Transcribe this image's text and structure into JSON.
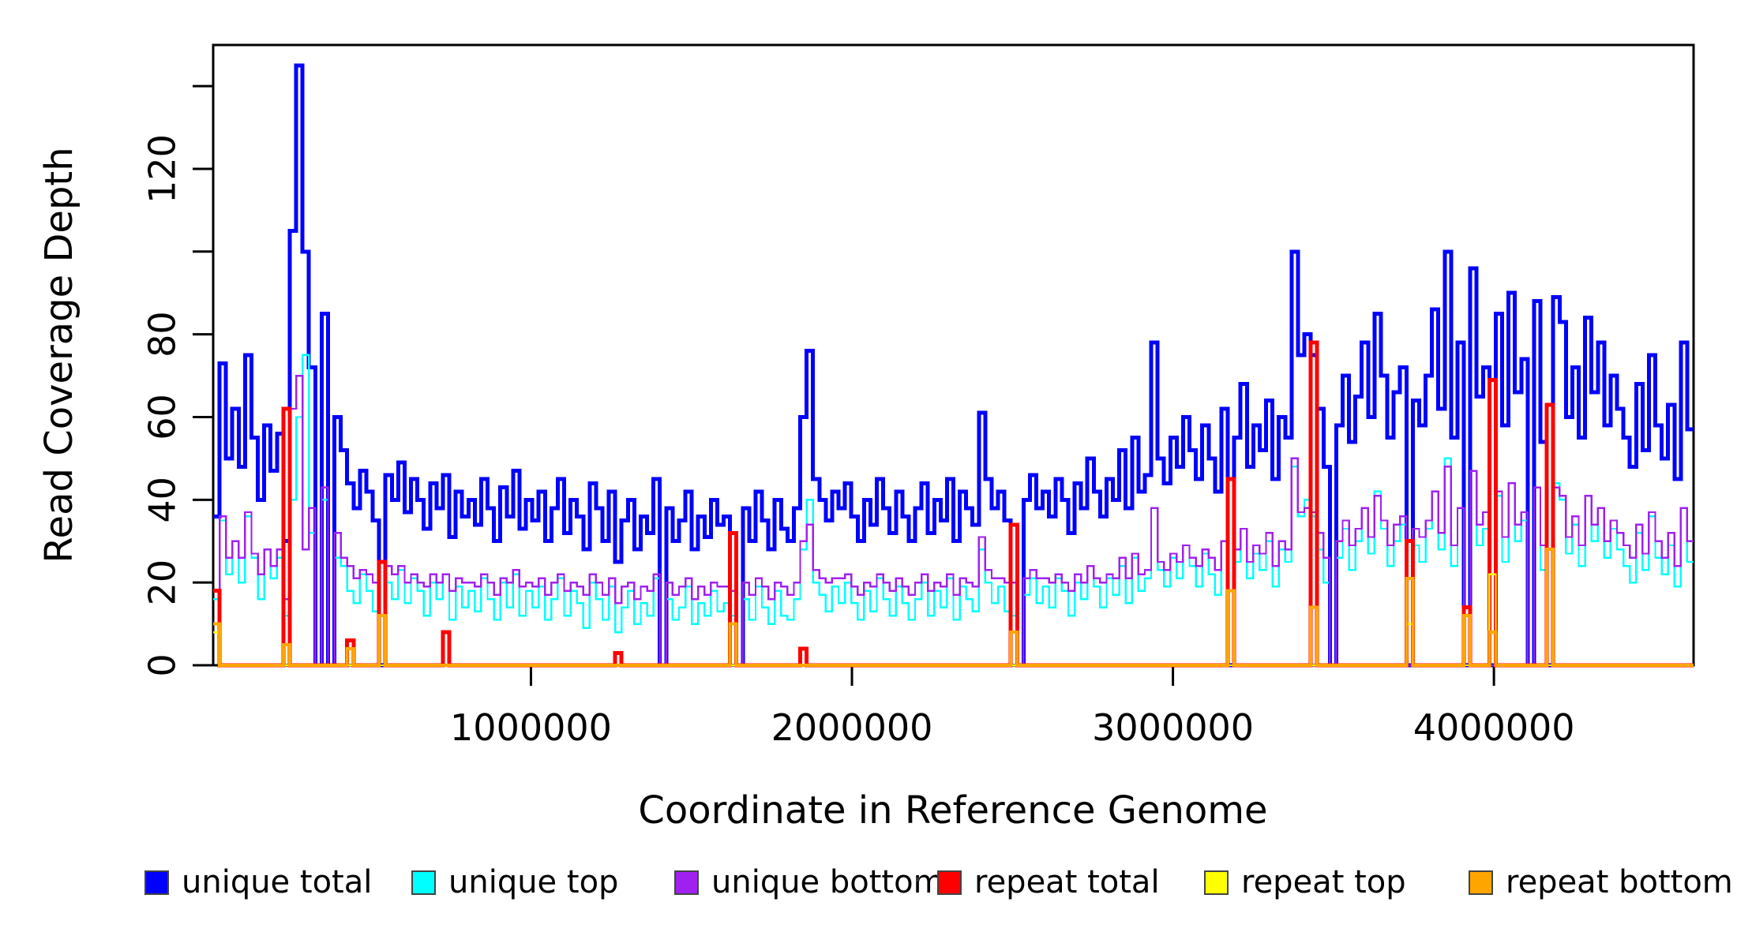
{
  "figure": {
    "background": "#FFFFFF"
  },
  "chart_data": {
    "type": "line",
    "subtype": "step",
    "title": "",
    "xlabel": "Coordinate in Reference Genome",
    "ylabel": "Read Coverage Depth",
    "grid": false,
    "legend_position": "bottom",
    "xlim": [
      10000,
      4622000
    ],
    "ylim": [
      0,
      150
    ],
    "n_windows": 232,
    "window_size_bp": 19879,
    "x_ticks": [
      {
        "value": 1000000,
        "label": "1000000"
      },
      {
        "value": 2000000,
        "label": "2000000"
      },
      {
        "value": 3000000,
        "label": "3000000"
      },
      {
        "value": 4000000,
        "label": "4000000"
      }
    ],
    "y_ticks": [
      {
        "value": 0,
        "label": "0"
      },
      {
        "value": 20,
        "label": "20"
      },
      {
        "value": 40,
        "label": "40"
      },
      {
        "value": 60,
        "label": "60"
      },
      {
        "value": 80,
        "label": "80"
      },
      {
        "value": 100,
        "label": ""
      },
      {
        "value": 120,
        "label": "120"
      },
      {
        "value": 140,
        "label": ""
      }
    ],
    "series": [
      {
        "name": "unique total",
        "color": "#0000FF",
        "width": 5,
        "values": [
          36,
          73,
          50,
          62,
          48,
          75,
          55,
          40,
          58,
          47,
          56,
          30,
          105,
          145,
          100,
          72,
          0,
          85,
          0,
          60,
          52,
          44,
          38,
          47,
          42,
          35,
          0,
          46,
          40,
          49,
          37,
          45,
          40,
          33,
          44,
          38,
          46,
          31,
          42,
          36,
          40,
          34,
          45,
          38,
          30,
          43,
          36,
          47,
          33,
          40,
          35,
          42,
          30,
          38,
          45,
          32,
          40,
          36,
          28,
          44,
          38,
          30,
          42,
          25,
          35,
          40,
          28,
          36,
          32,
          45,
          0,
          38,
          30,
          35,
          42,
          28,
          36,
          31,
          40,
          34,
          36,
          32,
          0,
          38,
          30,
          42,
          35,
          28,
          40,
          33,
          30,
          38,
          60,
          76,
          45,
          40,
          35,
          42,
          38,
          44,
          36,
          30,
          40,
          34,
          45,
          38,
          32,
          42,
          36,
          30,
          38,
          44,
          32,
          40,
          35,
          45,
          30,
          42,
          38,
          34,
          61,
          45,
          38,
          42,
          35,
          34,
          0,
          40,
          46,
          38,
          42,
          36,
          45,
          40,
          32,
          44,
          38,
          50,
          42,
          36,
          45,
          40,
          52,
          38,
          55,
          42,
          46,
          78,
          50,
          44,
          55,
          48,
          60,
          52,
          45,
          58,
          50,
          42,
          62,
          0,
          55,
          68,
          48,
          58,
          52,
          64,
          45,
          60,
          55,
          100,
          75,
          80,
          75,
          62,
          48,
          0,
          58,
          70,
          54,
          65,
          78,
          60,
          85,
          70,
          55,
          66,
          72,
          0,
          64,
          58,
          70,
          86,
          62,
          100,
          55,
          78,
          0,
          96,
          65,
          72,
          0,
          85,
          58,
          90,
          66,
          74,
          0,
          88,
          54,
          0,
          89,
          83,
          60,
          72,
          55,
          84,
          66,
          78,
          58,
          70,
          62,
          55,
          48,
          68,
          52,
          75,
          58,
          50,
          63,
          45,
          78,
          57
        ]
      },
      {
        "name": "unique top",
        "color": "#00FFFF",
        "width": 2.4,
        "values": [
          16,
          35,
          22,
          30,
          20,
          36,
          26,
          16,
          28,
          21,
          26,
          12,
          40,
          60,
          75,
          32,
          0,
          40,
          0,
          26,
          24,
          18,
          15,
          22,
          18,
          13,
          0,
          20,
          16,
          23,
          15,
          21,
          18,
          12,
          20,
          16,
          22,
          11,
          19,
          14,
          18,
          13,
          21,
          16,
          11,
          20,
          14,
          22,
          12,
          18,
          14,
          19,
          11,
          16,
          21,
          12,
          18,
          15,
          9,
          20,
          16,
          11,
          19,
          8,
          14,
          18,
          10,
          15,
          12,
          21,
          0,
          16,
          11,
          14,
          19,
          10,
          15,
          12,
          18,
          13,
          15,
          12,
          0,
          16,
          11,
          19,
          14,
          10,
          18,
          12,
          11,
          16,
          28,
          40,
          20,
          17,
          13,
          19,
          15,
          20,
          15,
          11,
          18,
          13,
          21,
          16,
          12,
          19,
          15,
          11,
          16,
          20,
          12,
          18,
          14,
          21,
          11,
          19,
          16,
          13,
          28,
          20,
          15,
          19,
          13,
          12,
          0,
          17,
          21,
          15,
          19,
          14,
          21,
          18,
          12,
          20,
          16,
          24,
          19,
          14,
          21,
          17,
          24,
          15,
          26,
          18,
          21,
          38,
          23,
          19,
          26,
          21,
          29,
          24,
          19,
          27,
          22,
          17,
          30,
          0,
          25,
          33,
          21,
          27,
          23,
          30,
          19,
          28,
          25,
          48,
          36,
          40,
          36,
          28,
          20,
          0,
          26,
          33,
          23,
          30,
          38,
          27,
          42,
          33,
          24,
          30,
          34,
          0,
          29,
          25,
          33,
          42,
          28,
          50,
          24,
          38,
          0,
          47,
          29,
          33,
          0,
          41,
          25,
          44,
          30,
          35,
          0,
          43,
          23,
          0,
          44,
          40,
          27,
          34,
          24,
          41,
          30,
          38,
          26,
          33,
          28,
          24,
          20,
          32,
          23,
          36,
          26,
          22,
          29,
          19,
          38,
          25
        ]
      },
      {
        "name": "unique bottom",
        "color": "#A020F0",
        "width": 2.4,
        "values": [
          18,
          36,
          26,
          30,
          26,
          37,
          27,
          22,
          28,
          24,
          28,
          16,
          62,
          70,
          28,
          38,
          0,
          43,
          0,
          32,
          26,
          24,
          21,
          23,
          22,
          20,
          0,
          24,
          22,
          24,
          20,
          22,
          20,
          19,
          22,
          20,
          22,
          18,
          21,
          20,
          20,
          19,
          22,
          20,
          17,
          21,
          20,
          23,
          19,
          20,
          19,
          21,
          17,
          20,
          22,
          18,
          20,
          19,
          17,
          22,
          20,
          17,
          21,
          15,
          19,
          20,
          16,
          19,
          18,
          22,
          0,
          20,
          17,
          19,
          21,
          16,
          19,
          17,
          20,
          19,
          19,
          18,
          0,
          20,
          17,
          21,
          19,
          16,
          20,
          19,
          17,
          20,
          30,
          34,
          23,
          21,
          20,
          21,
          21,
          22,
          19,
          17,
          20,
          19,
          22,
          20,
          18,
          21,
          19,
          17,
          20,
          22,
          18,
          20,
          19,
          22,
          17,
          21,
          20,
          19,
          31,
          23,
          21,
          21,
          20,
          20,
          0,
          21,
          23,
          21,
          21,
          20,
          22,
          20,
          18,
          22,
          20,
          24,
          21,
          20,
          22,
          21,
          26,
          21,
          27,
          22,
          23,
          38,
          25,
          23,
          27,
          25,
          29,
          26,
          24,
          28,
          26,
          23,
          30,
          0,
          28,
          33,
          25,
          29,
          27,
          32,
          24,
          30,
          28,
          50,
          37,
          38,
          37,
          32,
          26,
          0,
          30,
          35,
          29,
          33,
          38,
          31,
          41,
          35,
          29,
          34,
          36,
          0,
          33,
          31,
          35,
          42,
          32,
          48,
          29,
          38,
          0,
          47,
          34,
          37,
          0,
          42,
          31,
          44,
          34,
          37,
          0,
          43,
          29,
          0,
          43,
          41,
          31,
          36,
          29,
          41,
          34,
          38,
          30,
          35,
          32,
          29,
          26,
          34,
          27,
          37,
          30,
          26,
          32,
          24,
          38,
          30
        ]
      },
      {
        "name": "repeat total",
        "color": "#FF0000",
        "width": 5,
        "sparse": {
          "n": 232,
          "default": 0,
          "spikes": {
            "0": 18,
            "11": 62,
            "21": 6,
            "26": 25,
            "36": 8,
            "63": 3,
            "81": 32,
            "92": 4,
            "125": 34,
            "159": 45,
            "172": 78,
            "187": 30,
            "196": 14,
            "200": 69,
            "209": 63
          }
        }
      },
      {
        "name": "repeat top",
        "color": "#FFFF00",
        "width": 2.4,
        "sparse": {
          "n": 232,
          "default": 0,
          "spikes": {
            "0": 8,
            "187": 10,
            "200": 22
          }
        }
      },
      {
        "name": "repeat bottom",
        "color": "#FFA500",
        "width": 4,
        "sparse": {
          "n": 232,
          "default": 0,
          "spikes": {
            "0": 10,
            "11": 5,
            "21": 4,
            "26": 12,
            "81": 10,
            "125": 8,
            "159": 18,
            "172": 14,
            "187": 21,
            "196": 12,
            "200": 8,
            "209": 28
          }
        }
      }
    ]
  }
}
